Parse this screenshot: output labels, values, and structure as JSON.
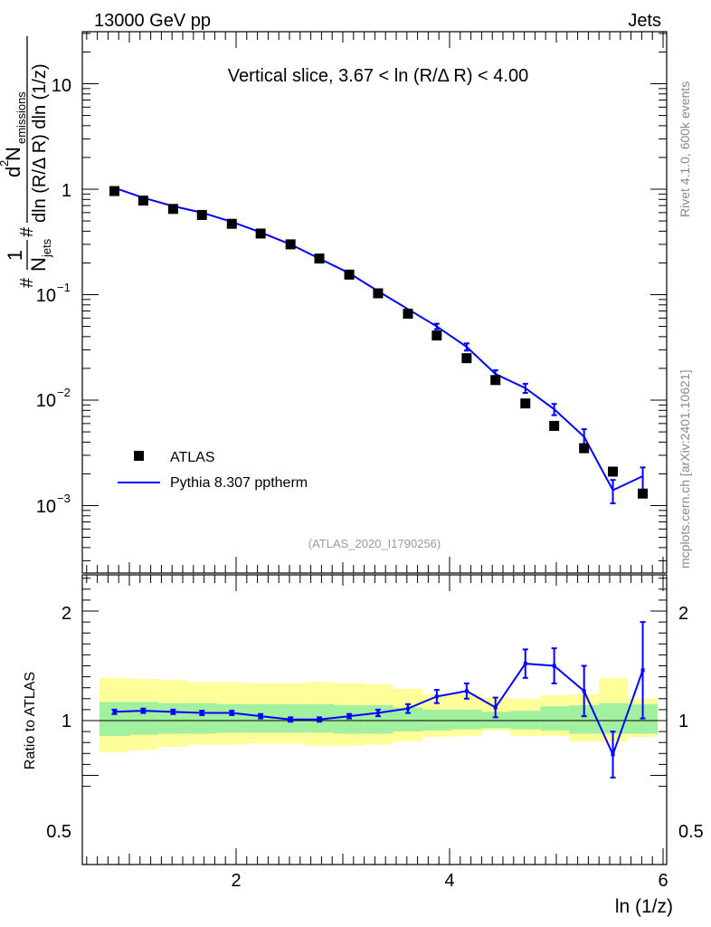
{
  "header": {
    "left": "13000 GeV pp",
    "right": "Jets"
  },
  "side_labels": {
    "rivet": "Rivet 4.1.0,  600k events",
    "mcplots": "mcplots.cern.ch [arXiv:2401.10621]"
  },
  "chart_data": {
    "type": "scatter",
    "title": "Vertical slice, 3.67 < ln (R/Δ R) < 4.00",
    "analysis_id": "(ATLAS_2020_I1790256)",
    "xlabel": "ln (1/z)",
    "ylabel": "1/N_jets d²N_emissions / dln (R/Δ R) dln (1/z)",
    "ylabel_parts": {
      "frac1_num": "1",
      "frac1_den": "N",
      "frac1_den_sub": "jets",
      "frac2_num": "d",
      "frac2_num_sup": "2",
      "frac2_num_main": " N",
      "frac2_num_sub": "emissions",
      "frac2_den": "dln (R/Δ R) dln (1/z)",
      "hash": "#"
    },
    "xlim": [
      0.7,
      6.0
    ],
    "x_ticks": [
      "2",
      "4",
      "6"
    ],
    "main": {
      "yscale": "log",
      "ylim": [
        0.00025,
        30
      ],
      "y_ticks": [
        {
          "v": 10,
          "base": "10",
          "exp": ""
        },
        {
          "v": 1,
          "base": "1",
          "exp": ""
        },
        {
          "v": 0.1,
          "base": "10",
          "exp": "−1"
        },
        {
          "v": 0.01,
          "base": "10",
          "exp": "−2"
        },
        {
          "v": 0.001,
          "base": "10",
          "exp": "−3"
        }
      ]
    },
    "x": [
      0.86,
      1.13,
      1.41,
      1.68,
      1.96,
      2.23,
      2.51,
      2.78,
      3.06,
      3.33,
      3.61,
      3.88,
      4.16,
      4.43,
      4.71,
      4.98,
      5.26,
      5.53,
      5.81
    ],
    "series": [
      {
        "name": "ATLAS",
        "style": "markers",
        "color": "#000000",
        "values": [
          0.96,
          0.78,
          0.65,
          0.57,
          0.47,
          0.38,
          0.3,
          0.22,
          0.155,
          0.103,
          0.066,
          0.041,
          0.025,
          0.0155,
          0.0093,
          0.0057,
          0.0035,
          0.0021,
          0.0013
        ]
      },
      {
        "name": "Pythia 8.307 pptherm",
        "style": "line",
        "color": "#0000ff",
        "values": [
          1.03,
          0.83,
          0.69,
          0.6,
          0.49,
          0.39,
          0.3,
          0.22,
          0.16,
          0.108,
          0.073,
          0.05,
          0.032,
          0.0177,
          0.013,
          0.0082,
          0.0045,
          0.0014,
          0.0019
        ],
        "err_low": [
          0.02,
          0.015,
          0.012,
          0.01,
          0.008,
          0.007,
          0.006,
          0.004,
          0.003,
          0.002,
          0.002,
          0.003,
          0.0025,
          0.0015,
          0.0013,
          0.001,
          0.0008,
          0.00035,
          0.0006
        ],
        "err_high": [
          0.02,
          0.015,
          0.012,
          0.01,
          0.008,
          0.007,
          0.006,
          0.004,
          0.003,
          0.002,
          0.002,
          0.003,
          0.0025,
          0.0015,
          0.0013,
          0.001,
          0.0008,
          0.00035,
          0.0004
        ]
      }
    ],
    "ratio": {
      "ylabel": "Ratio to ATLAS",
      "ylim": [
        0.4,
        2.4
      ],
      "y_ticks": [
        "0.5",
        "1",
        "2"
      ],
      "y_tick_values": [
        0.5,
        1,
        2
      ],
      "bin_edges": [
        0.72,
        1.0,
        1.27,
        1.55,
        1.82,
        2.1,
        2.37,
        2.65,
        2.92,
        3.2,
        3.47,
        3.75,
        4.02,
        4.3,
        4.57,
        4.85,
        5.12,
        5.4,
        5.67,
        5.95
      ],
      "green_band": [
        [
          0.86,
          1.17
        ],
        [
          0.87,
          1.17
        ],
        [
          0.88,
          1.16
        ],
        [
          0.88,
          1.16
        ],
        [
          0.89,
          1.15
        ],
        [
          0.89,
          1.15
        ],
        [
          0.89,
          1.15
        ],
        [
          0.89,
          1.15
        ],
        [
          0.88,
          1.14
        ],
        [
          0.88,
          1.14
        ],
        [
          0.9,
          1.12
        ],
        [
          0.91,
          1.1
        ],
        [
          0.92,
          1.1
        ],
        [
          0.93,
          1.08
        ],
        [
          0.92,
          1.09
        ],
        [
          0.91,
          1.13
        ],
        [
          0.88,
          1.14
        ],
        [
          0.88,
          1.16
        ],
        [
          0.88,
          1.15
        ]
      ],
      "yellow_band": [
        [
          0.71,
          1.39
        ],
        [
          0.73,
          1.38
        ],
        [
          0.76,
          1.37
        ],
        [
          0.78,
          1.35
        ],
        [
          0.78,
          1.35
        ],
        [
          0.79,
          1.34
        ],
        [
          0.79,
          1.34
        ],
        [
          0.77,
          1.35
        ],
        [
          0.77,
          1.34
        ],
        [
          0.78,
          1.33
        ],
        [
          0.81,
          1.29
        ],
        [
          0.85,
          1.24
        ],
        [
          0.86,
          1.24
        ],
        [
          0.91,
          1.21
        ],
        [
          0.86,
          1.2
        ],
        [
          0.86,
          1.23
        ],
        [
          0.81,
          1.24
        ],
        [
          0.81,
          1.39
        ],
        [
          0.85,
          1.2
        ]
      ],
      "values": [
        1.08,
        1.09,
        1.08,
        1.07,
        1.07,
        1.04,
        1.01,
        1.01,
        1.04,
        1.07,
        1.11,
        1.22,
        1.27,
        1.12,
        1.52,
        1.5,
        1.27,
        0.69,
        1.46
      ],
      "err": [
        0.02,
        0.02,
        0.02,
        0.02,
        0.02,
        0.02,
        0.02,
        0.02,
        0.02,
        0.03,
        0.04,
        0.06,
        0.07,
        0.09,
        0.13,
        0.16,
        0.23,
        0.21,
        0.44
      ]
    },
    "legend_position": "lower-left",
    "colors": {
      "atlas": "#000000",
      "pythia": "#0000ff",
      "green_band": "#a0f0a0",
      "yellow_band": "#ffff99"
    }
  }
}
